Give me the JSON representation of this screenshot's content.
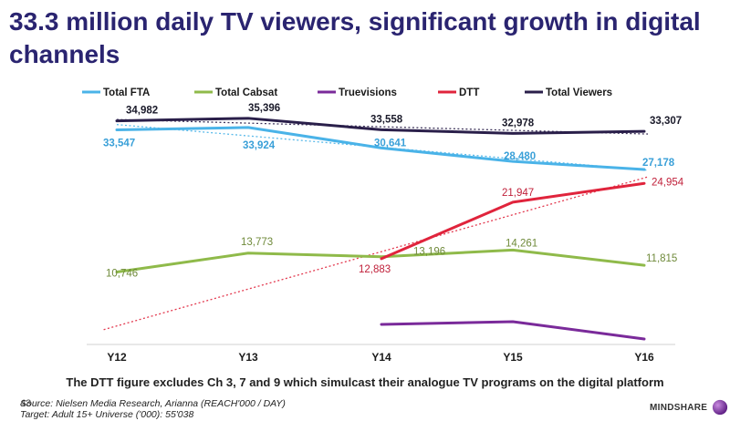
{
  "page": {
    "title": "33.3 million daily TV viewers, significant growth in digital channels",
    "footnote": "The DTT figure excludes Ch 3, 7 and 9 which simulcast their analogue TV programs on the digital platform",
    "source_line1": "Source: Nielsen Media Research, Arianna (REACH'000 / DAY)",
    "source_line2": "Target: Adult 15+ Universe ('000): 55'038",
    "page_number": "43",
    "logo_text": "MINDSHARE"
  },
  "chart_data": {
    "type": "line",
    "categories": [
      "Y12",
      "Y13",
      "Y14",
      "Y15",
      "Y16"
    ],
    "ylim": [
      0,
      38000
    ],
    "series": [
      {
        "name": "Total FTA",
        "color": "#4ab3e8",
        "label_color": "#3aa0d8",
        "values": [
          33547,
          33924,
          30641,
          28480,
          27178
        ],
        "labels": [
          "33,547",
          "33,924",
          "30,641",
          "28,480",
          "27,178"
        ]
      },
      {
        "name": "Total Cabsat",
        "color": "#8fba4a",
        "label_color": "#6f8a3a",
        "values": [
          10746,
          13773,
          13196,
          14261,
          11815
        ],
        "labels": [
          "10,746",
          "13,773",
          "13,196",
          "14,261",
          "11,815"
        ]
      },
      {
        "name": "Truevisions",
        "color": "#7a2a9a",
        "label_color": "#7a2a9a",
        "values": [
          null,
          null,
          null,
          null,
          null
        ],
        "labels": []
      },
      {
        "name": "DTT",
        "color": "#e0243c",
        "label_color": "#c0203a",
        "values": [
          null,
          null,
          12883,
          21947,
          24954
        ],
        "labels": [
          "",
          "",
          "12,883",
          "21,947",
          "24,954"
        ]
      },
      {
        "name": "Total Viewers",
        "color": "#2a1f4a",
        "label_color": "#1a1a2a",
        "values": [
          34982,
          35396,
          33558,
          32978,
          33307
        ],
        "labels": [
          "34,982",
          "35,396",
          "33,558",
          "32,978",
          "33,307"
        ]
      }
    ],
    "trendlines": [
      "Total Viewers",
      "Total FTA",
      "DTT"
    ],
    "legend_position": "top"
  }
}
